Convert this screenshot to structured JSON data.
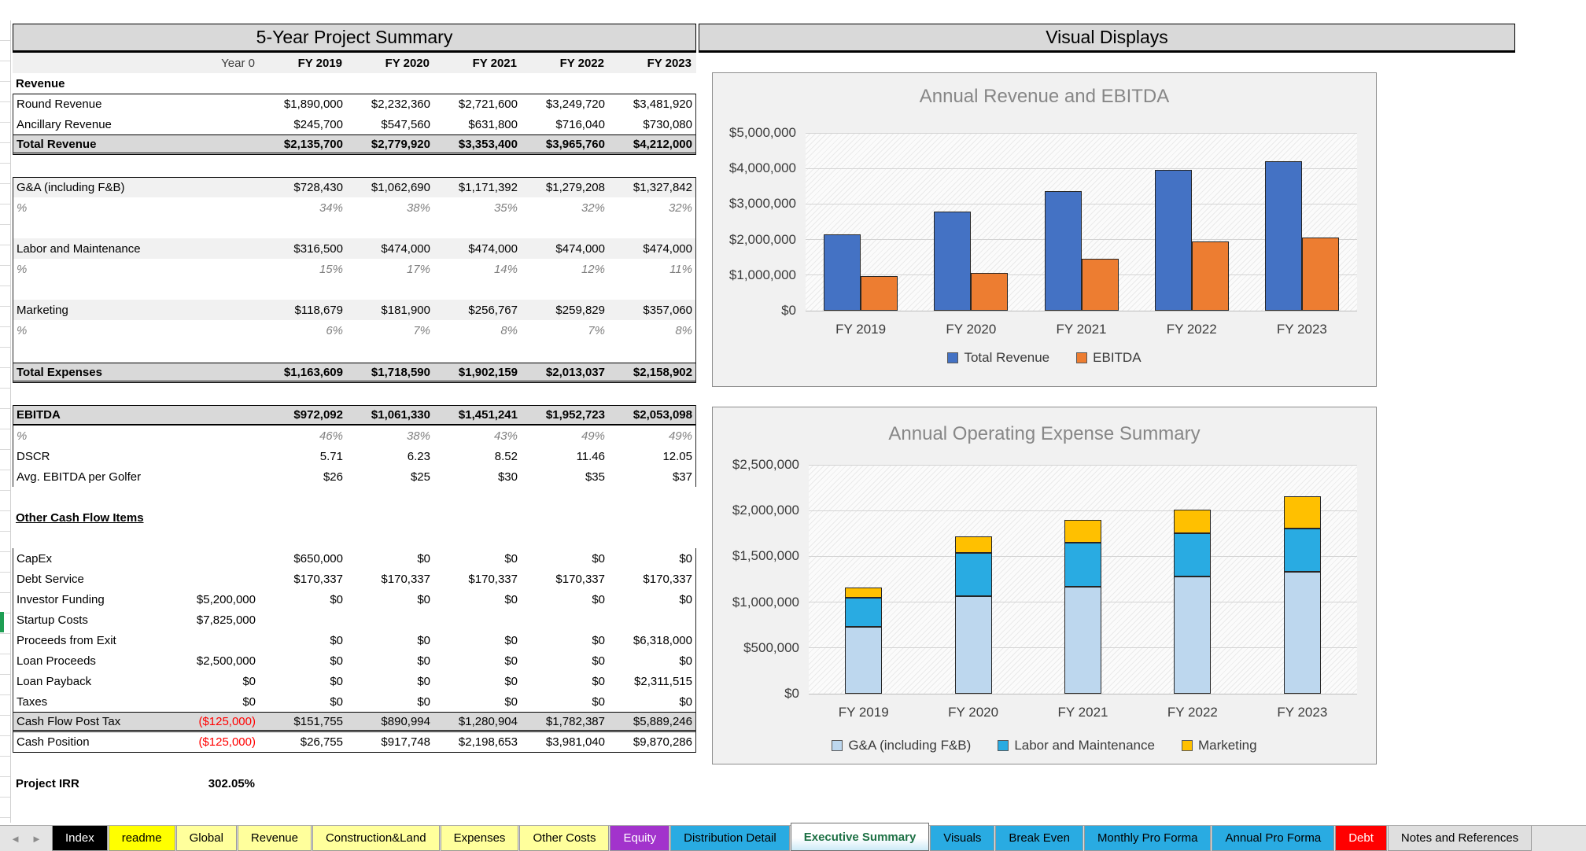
{
  "sheet": {
    "table": {
      "title": "5-Year Project Summary",
      "columns": [
        "Year 0",
        "FY 2019",
        "FY 2020",
        "FY 2021",
        "FY 2022",
        "FY 2023"
      ],
      "rows": [
        {
          "kind": "section",
          "label": "Revenue",
          "values": [
            "",
            "",
            "",
            "",
            "",
            ""
          ]
        },
        {
          "kind": "data",
          "box": "A",
          "bt": true,
          "label": "Round Revenue",
          "values": [
            "",
            "$1,890,000",
            "$2,232,360",
            "$2,721,600",
            "$3,249,720",
            "$3,481,920"
          ]
        },
        {
          "kind": "data",
          "box": "A",
          "label": "Ancillary Revenue",
          "values": [
            "",
            "$245,700",
            "$547,560",
            "$631,800",
            "$716,040",
            "$730,080"
          ]
        },
        {
          "kind": "total",
          "box": "A",
          "bold": true,
          "bb": "double",
          "label": "Total Revenue",
          "values": [
            "",
            "$2,135,700",
            "$2,779,920",
            "$3,353,400",
            "$3,965,760",
            "$4,212,000"
          ]
        },
        {
          "kind": "spacer",
          "h": 28
        },
        {
          "kind": "data",
          "box": "B",
          "band": true,
          "bt": true,
          "label": "G&A (including F&B)",
          "values": [
            "",
            "$728,430",
            "$1,062,690",
            "$1,171,392",
            "$1,279,208",
            "$1,327,842"
          ]
        },
        {
          "kind": "percent",
          "box": "B",
          "label": "%",
          "values": [
            "",
            "34%",
            "38%",
            "35%",
            "32%",
            "32%"
          ]
        },
        {
          "kind": "spacer",
          "box": "B",
          "h": 26
        },
        {
          "kind": "data",
          "box": "B",
          "band": true,
          "label": "Labor and Maintenance",
          "values": [
            "",
            "$316,500",
            "$474,000",
            "$474,000",
            "$474,000",
            "$474,000"
          ]
        },
        {
          "kind": "percent",
          "box": "B",
          "label": "%",
          "values": [
            "",
            "15%",
            "17%",
            "14%",
            "12%",
            "11%"
          ]
        },
        {
          "kind": "spacer",
          "box": "B",
          "h": 26
        },
        {
          "kind": "data",
          "box": "B",
          "band": true,
          "label": "Marketing",
          "values": [
            "",
            "$118,679",
            "$181,900",
            "$256,767",
            "$259,829",
            "$357,060"
          ]
        },
        {
          "kind": "percent",
          "box": "B",
          "label": "%",
          "values": [
            "",
            "6%",
            "7%",
            "8%",
            "7%",
            "8%"
          ]
        },
        {
          "kind": "spacer",
          "box": "B",
          "h": 28
        },
        {
          "kind": "total",
          "box": "B",
          "bold": true,
          "bb": "double",
          "label": "Total Expenses",
          "values": [
            "",
            "$1,163,609",
            "$1,718,590",
            "$1,902,159",
            "$2,013,037",
            "$2,158,902"
          ]
        },
        {
          "kind": "spacer",
          "h": 28
        },
        {
          "kind": "total",
          "box": "C",
          "bold": true,
          "bb": "single",
          "label": "EBITDA",
          "values": [
            "",
            "$972,092",
            "$1,061,330",
            "$1,451,241",
            "$1,952,723",
            "$2,053,098"
          ]
        },
        {
          "kind": "percent",
          "box": "C",
          "label": "%",
          "values": [
            "",
            "46%",
            "38%",
            "43%",
            "49%",
            "49%"
          ]
        },
        {
          "kind": "data",
          "box": "C",
          "label": "DSCR",
          "values": [
            "",
            "5.71",
            "6.23",
            "8.52",
            "11.46",
            "12.05"
          ]
        },
        {
          "kind": "data",
          "box": "C",
          "label": "Avg. EBITDA per Golfer",
          "values": [
            "",
            "$26",
            "$25",
            "$30",
            "$35",
            "$37"
          ]
        },
        {
          "kind": "spacer",
          "h": 26
        },
        {
          "kind": "section",
          "underline": true,
          "label": "Other Cash Flow Items",
          "values": [
            "",
            "",
            "",
            "",
            "",
            ""
          ]
        },
        {
          "kind": "spacer",
          "h": 26
        },
        {
          "kind": "data",
          "box": "D",
          "label": "CapEx",
          "values": [
            "",
            "$650,000",
            "$0",
            "$0",
            "$0",
            "$0"
          ]
        },
        {
          "kind": "data",
          "box": "D",
          "label": "Debt Service",
          "values": [
            "",
            "$170,337",
            "$170,337",
            "$170,337",
            "$170,337",
            "$170,337"
          ]
        },
        {
          "kind": "data",
          "box": "D",
          "label": "Investor Funding",
          "values": [
            "$5,200,000",
            "$0",
            "$0",
            "$0",
            "$0",
            "$0"
          ]
        },
        {
          "kind": "data",
          "box": "D",
          "label": "Startup Costs",
          "values": [
            "$7,825,000",
            "",
            "",
            "",
            "",
            ""
          ]
        },
        {
          "kind": "data",
          "box": "D",
          "label": "Proceeds from Exit",
          "values": [
            "",
            "$0",
            "$0",
            "$0",
            "$0",
            "$6,318,000"
          ]
        },
        {
          "kind": "data",
          "box": "D",
          "label": "Loan Proceeds",
          "values": [
            "$2,500,000",
            "$0",
            "$0",
            "$0",
            "$0",
            "$0"
          ]
        },
        {
          "kind": "data",
          "box": "D",
          "label": "Loan Payback",
          "values": [
            "$0",
            "$0",
            "$0",
            "$0",
            "$0",
            "$2,311,515"
          ]
        },
        {
          "kind": "data",
          "box": "D",
          "label": "Taxes",
          "values": [
            "$0",
            "$0",
            "$0",
            "$0",
            "$0",
            "$0"
          ]
        },
        {
          "kind": "total",
          "box": "D",
          "bb": "double",
          "red0": true,
          "label": "Cash Flow Post Tax",
          "values": [
            "($125,000)",
            "$151,755",
            "$890,994",
            "$1,280,904",
            "$1,782,387",
            "$5,889,246"
          ]
        },
        {
          "kind": "data",
          "box": "D",
          "bb": "thin",
          "red0": true,
          "label": "Cash Position",
          "values": [
            "($125,000)",
            "$26,755",
            "$917,748",
            "$2,198,653",
            "$3,981,040",
            "$9,870,286"
          ]
        },
        {
          "kind": "spacer",
          "h": 26
        },
        {
          "kind": "data",
          "bold": true,
          "label": "Project IRR",
          "values": [
            "302.05%",
            "",
            "",
            "",
            "",
            ""
          ]
        }
      ]
    },
    "visuals_title": "Visual Displays"
  },
  "chart_data": [
    {
      "type": "bar",
      "title": "Annual Revenue and EBITDA",
      "categories": [
        "FY 2019",
        "FY 2020",
        "FY 2021",
        "FY 2022",
        "FY 2023"
      ],
      "series": [
        {
          "name": "Total Revenue",
          "color": "#4472C4",
          "values": [
            2135700,
            2779920,
            3353400,
            3965760,
            4212000
          ]
        },
        {
          "name": "EBITDA",
          "color": "#ED7D31",
          "values": [
            972092,
            1061330,
            1451241,
            1952723,
            2053098
          ]
        }
      ],
      "ylim": [
        0,
        5000000
      ],
      "ytick_values": [
        0,
        1000000,
        2000000,
        3000000,
        4000000,
        5000000
      ],
      "ytick_labels": [
        "$0",
        "$1,000,000",
        "$2,000,000",
        "$3,000,000",
        "$4,000,000",
        "$5,000,000"
      ],
      "grid": true,
      "legend_position": "bottom"
    },
    {
      "type": "stacked-bar",
      "title": "Annual Operating Expense Summary",
      "categories": [
        "FY 2019",
        "FY 2020",
        "FY 2021",
        "FY 2022",
        "FY 2023"
      ],
      "series": [
        {
          "name": "G&A (including F&B)",
          "color": "#BDD7EE",
          "values": [
            728430,
            1062690,
            1171392,
            1279208,
            1327842
          ]
        },
        {
          "name": "Labor and Maintenance",
          "color": "#29ABE2",
          "values": [
            316500,
            474000,
            474000,
            474000,
            474000
          ]
        },
        {
          "name": "Marketing",
          "color": "#FFC000",
          "values": [
            118679,
            181900,
            256767,
            259829,
            357060
          ]
        }
      ],
      "ylim": [
        0,
        2500000
      ],
      "ytick_values": [
        0,
        500000,
        1000000,
        1500000,
        2000000,
        2500000
      ],
      "ytick_labels": [
        "$0",
        "$500,000",
        "$1,000,000",
        "$1,500,000",
        "$2,000,000",
        "$2,500,000"
      ],
      "grid": true,
      "legend_position": "bottom"
    }
  ],
  "tabs": {
    "nav_left": "◄",
    "nav_right": "►",
    "items": [
      {
        "label": "Index",
        "bg": "#000000",
        "fg": "#FFFFFF"
      },
      {
        "label": "readme",
        "bg": "#FFFF00",
        "fg": "#000000"
      },
      {
        "label": "Global",
        "bg": "#FFFF9C",
        "fg": "#000000"
      },
      {
        "label": "Revenue",
        "bg": "#FFFF9C",
        "fg": "#000000"
      },
      {
        "label": "Construction&Land",
        "bg": "#FFFF9C",
        "fg": "#000000"
      },
      {
        "label": "Expenses",
        "bg": "#FFFF9C",
        "fg": "#000000"
      },
      {
        "label": "Other Costs",
        "bg": "#FFFF9C",
        "fg": "#000000"
      },
      {
        "label": "Equity",
        "bg": "#A233CC",
        "fg": "#FFFFFF"
      },
      {
        "label": "Distribution Detail",
        "bg": "#29ABE2",
        "fg": "#000000"
      },
      {
        "label": "Executive Summary",
        "bg": "",
        "fg": "#1E7145",
        "active": true
      },
      {
        "label": "Visuals",
        "bg": "#29ABE2",
        "fg": "#000000"
      },
      {
        "label": "Break Even",
        "bg": "#29ABE2",
        "fg": "#000000"
      },
      {
        "label": "Monthly Pro Forma",
        "bg": "#29ABE2",
        "fg": "#000000"
      },
      {
        "label": "Annual Pro Forma",
        "bg": "#29ABE2",
        "fg": "#000000"
      },
      {
        "label": "Debt",
        "bg": "#FF0000",
        "fg": "#FFFFFF"
      },
      {
        "label": "Notes and References",
        "bg": "#DFDFDF",
        "fg": "#000000"
      }
    ]
  }
}
